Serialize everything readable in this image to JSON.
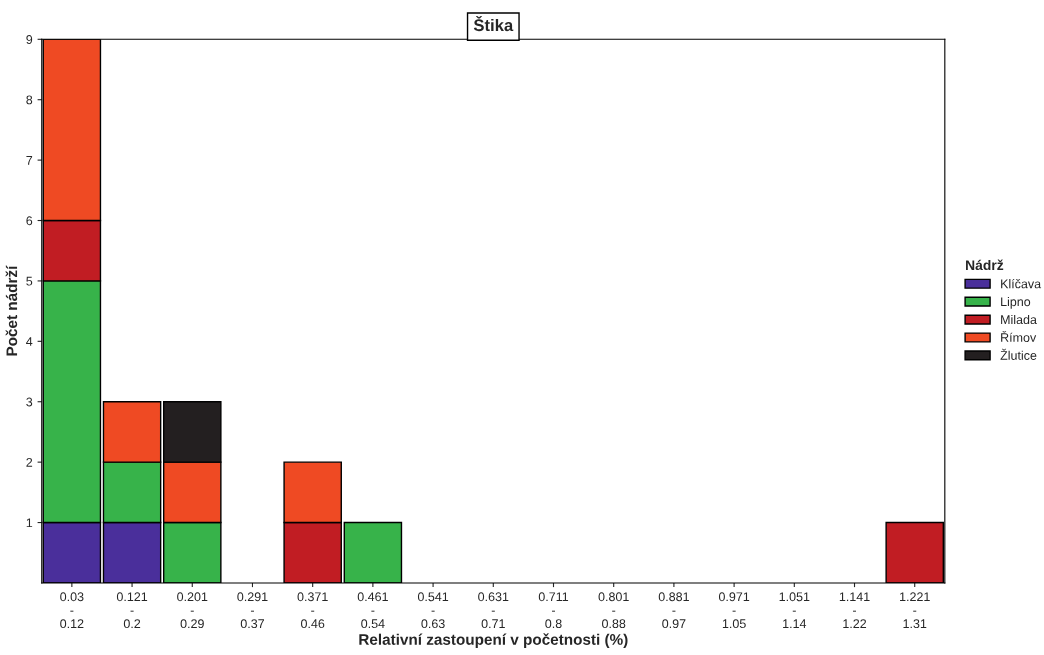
{
  "chart_data": {
    "type": "bar",
    "title": "Štika",
    "xlabel": "Relativní zastoupení v početnosti (%)",
    "ylabel": "Počet nádrží",
    "legend_title": "Nádrž",
    "categories": [
      "0.03\n-\n0.12",
      "0.121\n-\n0.2",
      "0.201\n-\n0.29",
      "0.291\n-\n0.37",
      "0.371\n-\n0.46",
      "0.461\n-\n0.54",
      "0.541\n-\n0.63",
      "0.631\n-\n0.71",
      "0.711\n-\n0.8",
      "0.801\n-\n0.88",
      "0.881\n-\n0.97",
      "0.971\n-\n1.05",
      "1.051\n-\n1.14",
      "1.141\n-\n1.22",
      "1.221\n-\n1.31"
    ],
    "series": [
      {
        "name": "Klíčava",
        "color": "#4a2f9b",
        "values": [
          1,
          1,
          null,
          null,
          null,
          null,
          null,
          null,
          null,
          null,
          null,
          null,
          null,
          null,
          null
        ]
      },
      {
        "name": "Lipno",
        "color": "#37b34a",
        "values": [
          4,
          1,
          1,
          null,
          null,
          1,
          null,
          null,
          null,
          null,
          null,
          null,
          null,
          null,
          null
        ]
      },
      {
        "name": "Milada",
        "color": "#c11d23",
        "values": [
          1,
          null,
          null,
          null,
          1,
          null,
          null,
          null,
          null,
          null,
          null,
          null,
          null,
          null,
          1
        ]
      },
      {
        "name": "Římov",
        "color": "#ef4a23",
        "values": [
          3,
          1,
          1,
          null,
          1,
          null,
          null,
          null,
          null,
          null,
          null,
          null,
          null,
          null,
          null
        ]
      },
      {
        "name": "Žlutice",
        "color": "#231f20",
        "values": [
          null,
          null,
          1,
          null,
          null,
          null,
          null,
          null,
          null,
          null,
          null,
          null,
          null,
          null,
          null
        ]
      }
    ],
    "stacked": true,
    "ylim": [
      0,
      9
    ],
    "yticks": [
      1,
      2,
      3,
      4,
      5,
      6,
      7,
      8,
      9
    ],
    "grid": false,
    "legend": "right"
  }
}
